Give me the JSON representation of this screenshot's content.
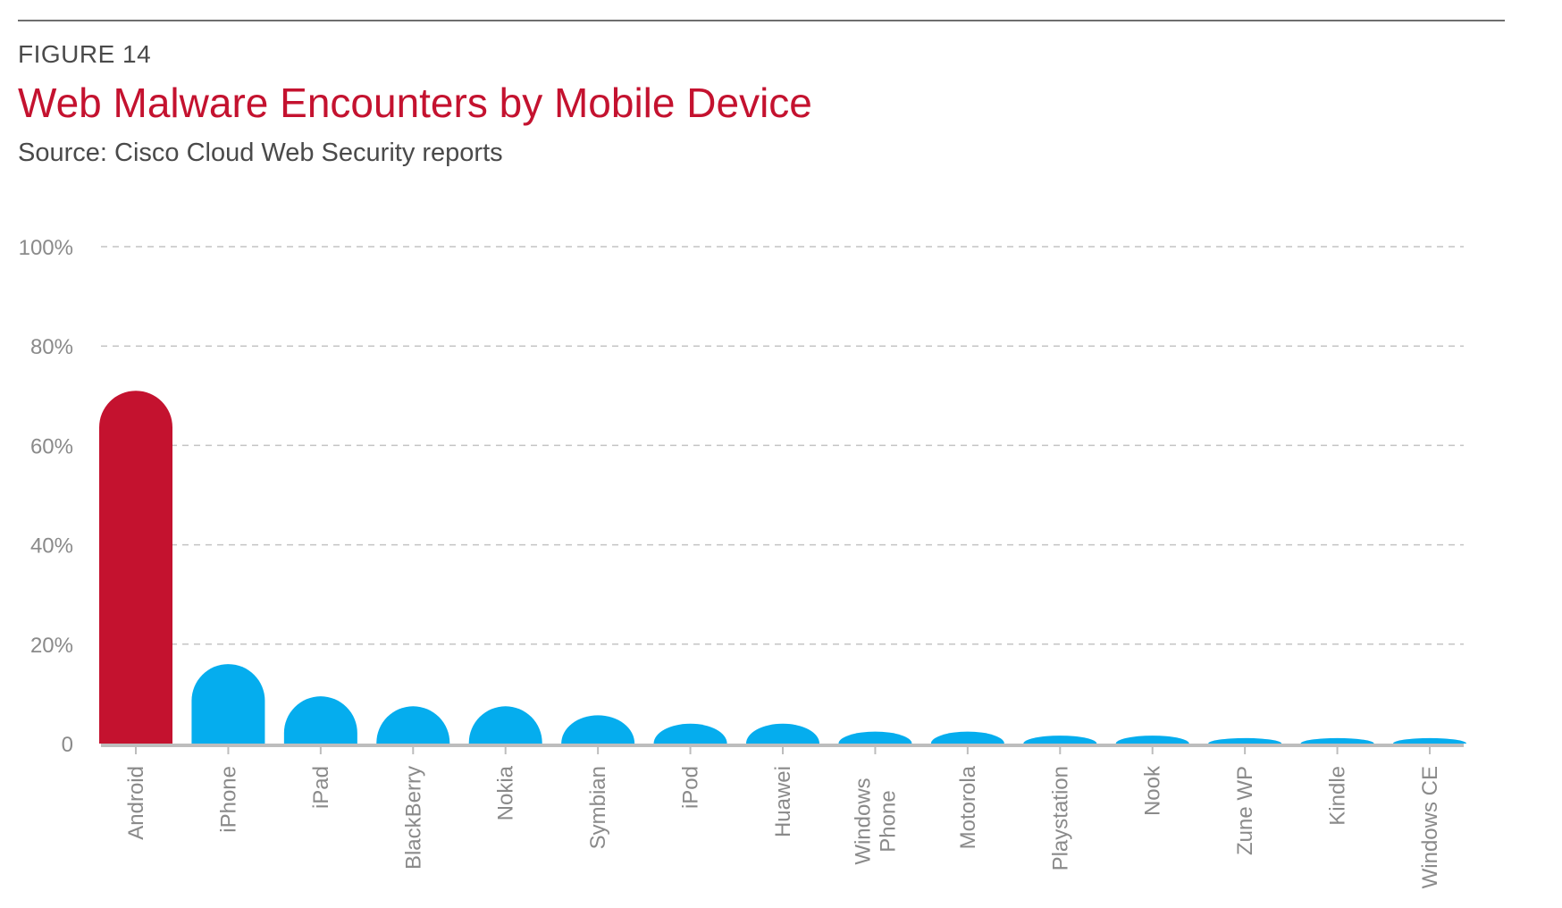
{
  "header": {
    "figure_label": "FIGURE 14",
    "title": "Web Malware Encounters by Mobile Device",
    "source": "Source: Cisco Cloud Web Security reports"
  },
  "colors": {
    "highlight": "#c4122f",
    "bar": "#05adee",
    "grid": "#c4c4c4",
    "axis": "#bdbdbd",
    "tick_text": "#8a8a8a"
  },
  "chart_data": {
    "type": "bar",
    "title": "Web Malware Encounters by Mobile Device",
    "subtitle": "Source: Cisco Cloud Web Security reports",
    "xlabel": "",
    "ylabel": "",
    "ylim": [
      0,
      100
    ],
    "yticks": [
      0,
      20,
      40,
      60,
      80,
      100
    ],
    "ytick_labels": [
      "0",
      "20%",
      "40%",
      "60%",
      "80%",
      "100%"
    ],
    "grid": true,
    "legend": "none",
    "categories": [
      [
        "Android"
      ],
      [
        "iPhone"
      ],
      [
        "iPad"
      ],
      [
        "BlackBerry"
      ],
      [
        "Nokia"
      ],
      [
        "Symbian"
      ],
      [
        "iPod"
      ],
      [
        "Huawei"
      ],
      [
        "Windows",
        "Phone"
      ],
      [
        "Motorola"
      ],
      [
        "Playstation"
      ],
      [
        "Nook"
      ],
      [
        "Zune WP"
      ],
      [
        "Kindle"
      ],
      [
        "Windows CE"
      ]
    ],
    "values": [
      71,
      16,
      9.5,
      7.5,
      7.5,
      5.7,
      4,
      4,
      2.4,
      2.4,
      1.6,
      1.6,
      1.1,
      1.1,
      1.1
    ],
    "highlight_index": 0
  }
}
